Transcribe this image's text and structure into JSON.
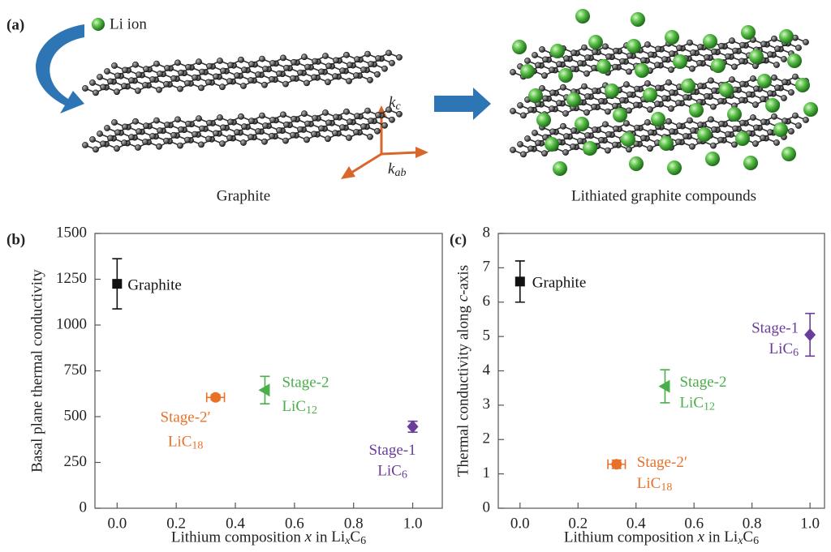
{
  "schematic": {
    "panel_label": "(a)",
    "legend_label": "Li ion",
    "left_caption": "Graphite",
    "right_caption": "Lithiated graphite compounds",
    "kc": "kc",
    "kab": "kab"
  },
  "chart_data": [
    {
      "type": "scatter",
      "panel_label": "(b)",
      "xlabel": "Lithium composition x in LixC6",
      "ylabel": "Basal plane thermal conductivity",
      "xlim": [
        -0.075,
        1.1
      ],
      "ylim": [
        0,
        1500
      ],
      "xticks": [
        {
          "value": 0,
          "label": "0.0"
        },
        0.2,
        0.4,
        0.6,
        0.8,
        {
          "value": 1,
          "label": "1.0"
        }
      ],
      "yticks": [
        0,
        250,
        500,
        750,
        1000,
        1250,
        1500
      ],
      "series": [
        {
          "labels": [
            "Graphite"
          ],
          "color": "#111111",
          "marker": "square",
          "x": [
            0
          ],
          "values": [
            1225
          ],
          "errors": [
            137
          ]
        },
        {
          "labels": [
            "Stage-2′",
            "LiC18"
          ],
          "color": "#e8712a",
          "marker": "circle",
          "x": [
            0.333
          ],
          "values": [
            605
          ],
          "errors": [
            15
          ],
          "xerrors": [
            0.03
          ]
        },
        {
          "labels": [
            "Stage-2",
            "LiC12"
          ],
          "color": "#4aae4a",
          "marker": "triangle",
          "x": [
            0.5
          ],
          "values": [
            645
          ],
          "errors": [
            75
          ]
        },
        {
          "labels": [
            "Stage-1",
            "LiC6"
          ],
          "color": "#6a3d9a",
          "marker": "diamond",
          "x": [
            1
          ],
          "values": [
            445
          ],
          "errors": [
            30
          ]
        }
      ]
    },
    {
      "type": "scatter",
      "panel_label": "(c)",
      "xlabel": "Lithium composition x in LixC6",
      "ylabel": "Thermal conductivity along c-axis",
      "xlim": [
        -0.075,
        1.05
      ],
      "ylim": [
        0,
        8
      ],
      "xticks": [
        {
          "value": 0,
          "label": "0.0"
        },
        0.2,
        0.4,
        0.6,
        0.8,
        {
          "value": 1,
          "label": "1.0"
        }
      ],
      "yticks": [
        0,
        1,
        2,
        3,
        4,
        5,
        6,
        7,
        8
      ],
      "series": [
        {
          "labels": [
            "Graphite"
          ],
          "color": "#111111",
          "marker": "square",
          "x": [
            0
          ],
          "values": [
            6.6
          ],
          "errors": [
            0.6
          ]
        },
        {
          "labels": [
            "Stage-2′",
            "LiC18"
          ],
          "color": "#e8712a",
          "marker": "circle",
          "x": [
            0.333
          ],
          "values": [
            1.28
          ],
          "errors": [
            0.12
          ],
          "xerrors": [
            0.03
          ]
        },
        {
          "labels": [
            "Stage-2",
            "LiC12"
          ],
          "color": "#4aae4a",
          "marker": "triangle",
          "x": [
            0.5
          ],
          "values": [
            3.55
          ],
          "errors": [
            0.48
          ]
        },
        {
          "labels": [
            "Stage-1",
            "LiC6"
          ],
          "color": "#6a3d9a",
          "marker": "diamond",
          "x": [
            1
          ],
          "values": [
            5.05
          ],
          "errors": [
            0.62
          ]
        }
      ]
    }
  ]
}
